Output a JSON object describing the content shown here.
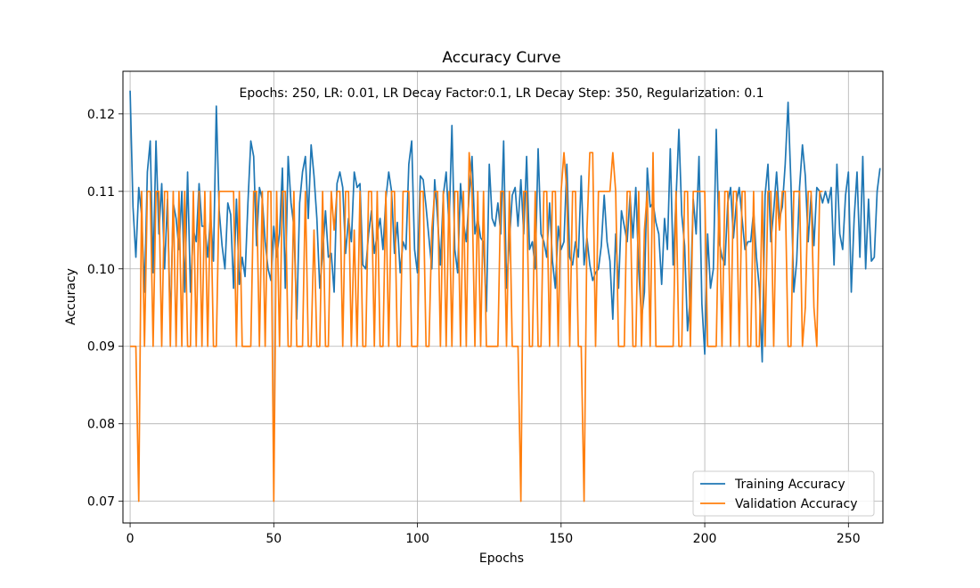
{
  "chart_data": {
    "type": "line",
    "title": "Accuracy Curve",
    "annotation": "Epochs: 250, LR: 0.01, LR Decay Factor:0.1, LR Decay Step: 350, Regularization: 0.1",
    "xlabel": "Epochs",
    "ylabel": "Accuracy",
    "xlim": [
      -2.5,
      262
    ],
    "ylim": [
      0.0672,
      0.1255
    ],
    "xticks": [
      0,
      50,
      100,
      150,
      200,
      250
    ],
    "xtick_labels": [
      "0",
      "50",
      "100",
      "150",
      "200",
      "250"
    ],
    "yticks": [
      0.07,
      0.08,
      0.09,
      0.1,
      0.11,
      0.12
    ],
    "ytick_labels": [
      "0.07",
      "0.08",
      "0.09",
      "0.10",
      "0.11",
      "0.12"
    ],
    "grid": true,
    "legend_position": "bottom-right",
    "x_start": 0,
    "x_step": 1,
    "series": [
      {
        "name": "Training Accuracy",
        "color": "#1f77b4",
        "values": [
          0.123,
          0.108,
          0.1015,
          0.1105,
          0.107,
          0.097,
          0.1125,
          0.1165,
          0.0995,
          0.1165,
          0.1045,
          0.111,
          0.1,
          0.109,
          0.0925,
          0.1085,
          0.1065,
          0.1025,
          0.11,
          0.097,
          0.1125,
          0.097,
          0.105,
          0.1035,
          0.111,
          0.1055,
          0.1055,
          0.1015,
          0.107,
          0.101,
          0.121,
          0.1075,
          0.103,
          0.1,
          0.1085,
          0.107,
          0.0975,
          0.109,
          0.098,
          0.1015,
          0.099,
          0.1085,
          0.1165,
          0.1145,
          0.103,
          0.1105,
          0.109,
          0.1035,
          0.1,
          0.0985,
          0.1055,
          0.1015,
          0.1045,
          0.113,
          0.0975,
          0.1145,
          0.1085,
          0.1055,
          0.0935,
          0.1085,
          0.1125,
          0.1145,
          0.1065,
          0.116,
          0.112,
          0.1065,
          0.0975,
          0.102,
          0.1075,
          0.1015,
          0.102,
          0.097,
          0.111,
          0.1125,
          0.1105,
          0.102,
          0.1065,
          0.1035,
          0.1125,
          0.1105,
          0.111,
          0.1005,
          0.1,
          0.1045,
          0.1075,
          0.102,
          0.1045,
          0.1065,
          0.1025,
          0.109,
          0.1125,
          0.11,
          0.102,
          0.106,
          0.0995,
          0.1035,
          0.1025,
          0.1135,
          0.1165,
          0.1025,
          0.0995,
          0.112,
          0.1115,
          0.108,
          0.104,
          0.1,
          0.1115,
          0.1065,
          0.1005,
          0.1095,
          0.1125,
          0.1055,
          0.1185,
          0.1025,
          0.0995,
          0.111,
          0.106,
          0.1035,
          0.1095,
          0.1145,
          0.1045,
          0.1065,
          0.104,
          0.1035,
          0.0945,
          0.1135,
          0.1065,
          0.1055,
          0.1085,
          0.1045,
          0.1165,
          0.0975,
          0.1035,
          0.1095,
          0.1105,
          0.1055,
          0.1115,
          0.1045,
          0.1145,
          0.1025,
          0.1035,
          0.1,
          0.1155,
          0.1045,
          0.1035,
          0.1015,
          0.1085,
          0.101,
          0.0975,
          0.1055,
          0.1025,
          0.1035,
          0.1135,
          0.1015,
          0.1005,
          0.1035,
          0.1015,
          0.112,
          0.1005,
          0.104,
          0.1005,
          0.0985,
          0.0995,
          0.1,
          0.103,
          0.1095,
          0.1035,
          0.101,
          0.0935,
          0.1045,
          0.0975,
          0.1075,
          0.1055,
          0.1035,
          0.1095,
          0.104,
          0.1105,
          0.1,
          0.0935,
          0.097,
          0.113,
          0.108,
          0.1085,
          0.106,
          0.1045,
          0.098,
          0.1065,
          0.1025,
          0.1155,
          0.1005,
          0.109,
          0.118,
          0.107,
          0.103,
          0.092,
          0.0965,
          0.109,
          0.1045,
          0.1145,
          0.0955,
          0.089,
          0.1045,
          0.0975,
          0.1,
          0.118,
          0.1035,
          0.1015,
          0.1005,
          0.1085,
          0.1105,
          0.104,
          0.1085,
          0.1105,
          0.1065,
          0.1025,
          0.1035,
          0.1035,
          0.1075,
          0.1015,
          0.0975,
          0.088,
          0.1095,
          0.1135,
          0.1035,
          0.1075,
          0.1125,
          0.1065,
          0.108,
          0.1135,
          0.1215,
          0.111,
          0.097,
          0.101,
          0.1105,
          0.116,
          0.112,
          0.1035,
          0.1095,
          0.103,
          0.1105,
          0.11,
          0.1085,
          0.11,
          0.1085,
          0.1105,
          0.1005,
          0.1135,
          0.1045,
          0.1025,
          0.1095,
          0.1125,
          0.097,
          0.1065,
          0.1125,
          0.1015,
          0.1145,
          0.1,
          0.109,
          0.101,
          0.1015,
          0.11,
          0.113
        ]
      },
      {
        "name": "Validation Accuracy",
        "color": "#ff7f0e",
        "values": [
          0.09,
          0.09,
          0.09,
          0.07,
          0.11,
          0.09,
          0.11,
          0.11,
          0.09,
          0.11,
          0.11,
          0.09,
          0.11,
          0.11,
          0.09,
          0.11,
          0.09,
          0.11,
          0.09,
          0.11,
          0.09,
          0.09,
          0.11,
          0.09,
          0.11,
          0.09,
          0.11,
          0.09,
          0.11,
          0.09,
          0.09,
          0.11,
          0.11,
          0.11,
          0.11,
          0.11,
          0.11,
          0.09,
          0.11,
          0.09,
          0.09,
          0.09,
          0.09,
          0.11,
          0.11,
          0.09,
          0.11,
          0.09,
          0.11,
          0.11,
          0.07,
          0.11,
          0.09,
          0.11,
          0.11,
          0.09,
          0.09,
          0.11,
          0.09,
          0.09,
          0.09,
          0.11,
          0.09,
          0.09,
          0.105,
          0.09,
          0.09,
          0.11,
          0.09,
          0.09,
          0.11,
          0.105,
          0.11,
          0.11,
          0.09,
          0.11,
          0.11,
          0.09,
          0.105,
          0.09,
          0.11,
          0.09,
          0.09,
          0.11,
          0.11,
          0.09,
          0.11,
          0.09,
          0.09,
          0.11,
          0.09,
          0.11,
          0.11,
          0.09,
          0.09,
          0.11,
          0.11,
          0.11,
          0.09,
          0.09,
          0.09,
          0.11,
          0.11,
          0.09,
          0.09,
          0.105,
          0.11,
          0.11,
          0.09,
          0.11,
          0.09,
          0.11,
          0.09,
          0.11,
          0.11,
          0.09,
          0.11,
          0.09,
          0.115,
          0.11,
          0.09,
          0.11,
          0.09,
          0.11,
          0.09,
          0.09,
          0.09,
          0.09,
          0.09,
          0.11,
          0.11,
          0.09,
          0.11,
          0.09,
          0.09,
          0.09,
          0.07,
          0.11,
          0.11,
          0.09,
          0.09,
          0.11,
          0.09,
          0.09,
          0.11,
          0.11,
          0.09,
          0.11,
          0.11,
          0.09,
          0.11,
          0.115,
          0.11,
          0.09,
          0.11,
          0.11,
          0.09,
          0.09,
          0.07,
          0.105,
          0.115,
          0.115,
          0.09,
          0.11,
          0.11,
          0.11,
          0.11,
          0.11,
          0.115,
          0.11,
          0.09,
          0.09,
          0.09,
          0.11,
          0.11,
          0.09,
          0.09,
          0.11,
          0.09,
          0.105,
          0.11,
          0.09,
          0.115,
          0.09,
          0.09,
          0.09,
          0.09,
          0.09,
          0.09,
          0.09,
          0.11,
          0.09,
          0.09,
          0.11,
          0.11,
          0.09,
          0.11,
          0.11,
          0.11,
          0.11,
          0.11,
          0.09,
          0.09,
          0.09,
          0.09,
          0.11,
          0.09,
          0.11,
          0.11,
          0.09,
          0.11,
          0.11,
          0.09,
          0.11,
          0.11,
          0.09,
          0.09,
          0.11,
          0.09,
          0.09,
          0.11,
          0.09,
          0.11,
          0.11,
          0.09,
          0.11,
          0.105,
          0.11,
          0.11,
          0.09,
          0.09,
          0.11,
          0.11,
          0.11,
          0.09,
          0.095,
          0.11,
          0.11,
          0.095,
          0.09,
          0.11,
          0.11
        ]
      }
    ]
  }
}
